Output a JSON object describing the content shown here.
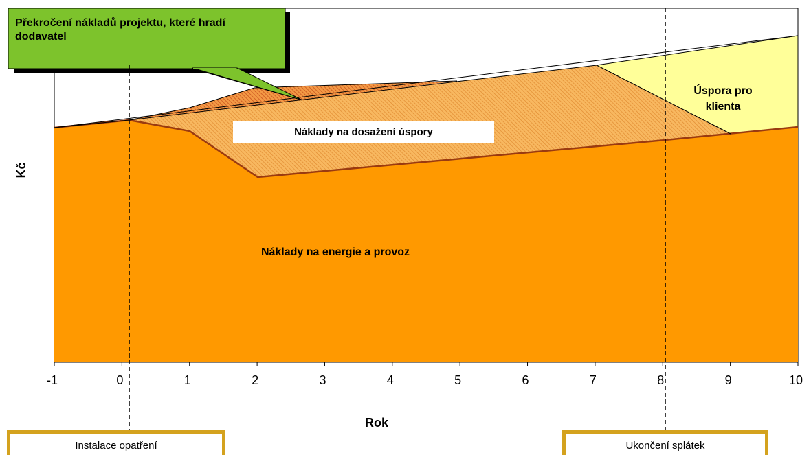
{
  "chart_data": {
    "type": "area",
    "xlabel": "Rok",
    "ylabel": "Kč",
    "x_ticks": [
      "-1",
      "0",
      "1",
      "2",
      "3",
      "4",
      "5",
      "6",
      "7",
      "8",
      "9",
      "10"
    ],
    "xlim": [
      -1,
      10
    ],
    "grid": false,
    "series": [
      {
        "name": "Náklady na energie a provoz",
        "x": [
          -1,
          0,
          1,
          2,
          7,
          8,
          9,
          10
        ],
        "y": [
          62,
          65,
          61,
          40,
          55,
          57,
          60,
          63
        ],
        "color": "#ff9900"
      },
      {
        "name": "Náklady na dosažení úspory",
        "x": [
          0,
          2,
          5,
          7,
          9
        ],
        "y": [
          65,
          100,
          104,
          110,
          60
        ],
        "color": "#f7a940"
      },
      {
        "name": "Překročení nákladů projektu, které hradí dodavatel",
        "x": [
          1,
          2,
          3,
          5
        ],
        "y": [
          71,
          82,
          84,
          86
        ],
        "color": "#e8762c"
      },
      {
        "name": "Úspora pro klienta",
        "x": [
          7,
          10
        ],
        "y": [
          110,
          122
        ],
        "color": "#ffff99"
      }
    ],
    "annotations": [
      "Překročení nákladů projektu, které hradí dodavatel",
      "Náklady na dosažení úspory",
      "Úspora pro klienta",
      "Náklady na energie a provoz"
    ],
    "markers": [
      {
        "x": 0.1,
        "label": "Instalace opatření"
      },
      {
        "x": 8.05,
        "label": "Ukončení splátek"
      }
    ]
  },
  "labels": {
    "callout": "Překročení nákladů projektu, které hradí dodavatel",
    "savings_cost": "Náklady na dosažení úspory",
    "client_saving_1": "Úspora pro",
    "client_saving_2": "klienta",
    "energy": "Náklady na energie a provoz",
    "marker_left": "Instalace opatření",
    "marker_right": "Ukončení splátek"
  }
}
